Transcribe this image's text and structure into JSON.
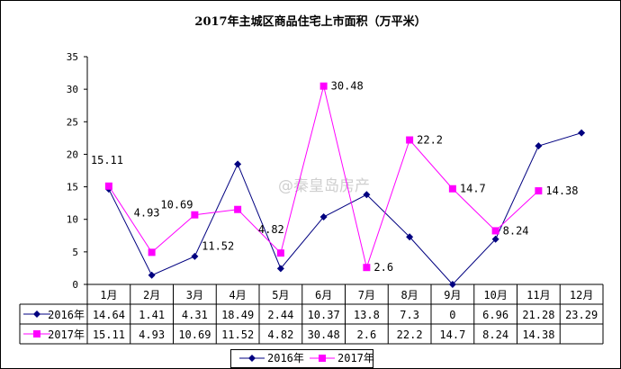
{
  "chart_data": {
    "type": "line",
    "title": "2017年主城区商品住宅上市面积（万平米）",
    "categories": [
      "1月",
      "2月",
      "3月",
      "4月",
      "5月",
      "6月",
      "7月",
      "8月",
      "9月",
      "10月",
      "11月",
      "12月"
    ],
    "ylim": [
      0,
      35
    ],
    "yticks": [
      0,
      5,
      10,
      15,
      20,
      25,
      30,
      35
    ],
    "grid": false,
    "legend_position": "bottom",
    "data_table": true,
    "series": [
      {
        "name": "2016年",
        "color": "#000080",
        "marker": "diamond",
        "values": [
          14.64,
          1.41,
          4.31,
          18.49,
          2.44,
          10.37,
          13.8,
          7.3,
          0,
          6.96,
          21.28,
          23.29
        ]
      },
      {
        "name": "2017年",
        "color": "#ff00ff",
        "marker": "square",
        "values": [
          15.11,
          4.93,
          10.69,
          11.52,
          4.82,
          30.48,
          2.6,
          22.2,
          14.7,
          8.24,
          14.38,
          null
        ],
        "data_labels": true
      }
    ]
  },
  "watermark": "@秦皇岛房产"
}
